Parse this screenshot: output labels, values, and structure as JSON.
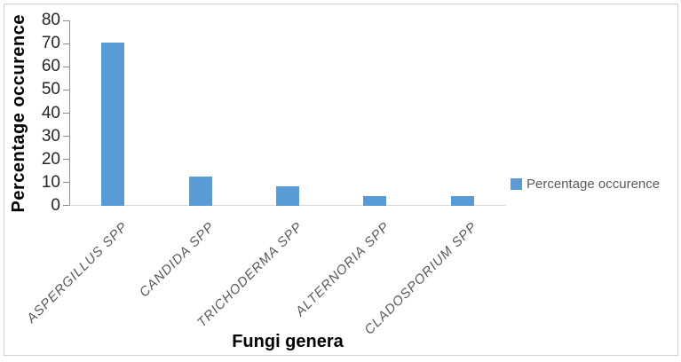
{
  "figure": {
    "background_color": "#ffffff",
    "frame_border_color": "#cfcfcf"
  },
  "chart_data": {
    "type": "bar",
    "title": "",
    "categories": [
      "ASPERGILLUS SPP",
      "CANDIDA SPP",
      "TRICHODERMA SPP",
      "ALTERNORIA SPP",
      "CLADOSPORIUM SPP"
    ],
    "series": [
      {
        "name": "Percentage occurence",
        "values": [
          70.5,
          12.5,
          8.5,
          4.25,
          4.25
        ]
      }
    ],
    "xlabel": "Fungi genera",
    "ylabel": "Percentage occurence",
    "ylim": [
      0,
      80
    ],
    "yticks": [
      0,
      10,
      20,
      30,
      40,
      50,
      60,
      70,
      80
    ],
    "grid": false,
    "legend_position": "right",
    "bar_color": "#5b9bd5",
    "category_label_rotation_deg": -45,
    "category_label_style": "italic"
  },
  "legend": {
    "label": "Percentage occurence",
    "swatch_color": "#5b9bd5"
  }
}
